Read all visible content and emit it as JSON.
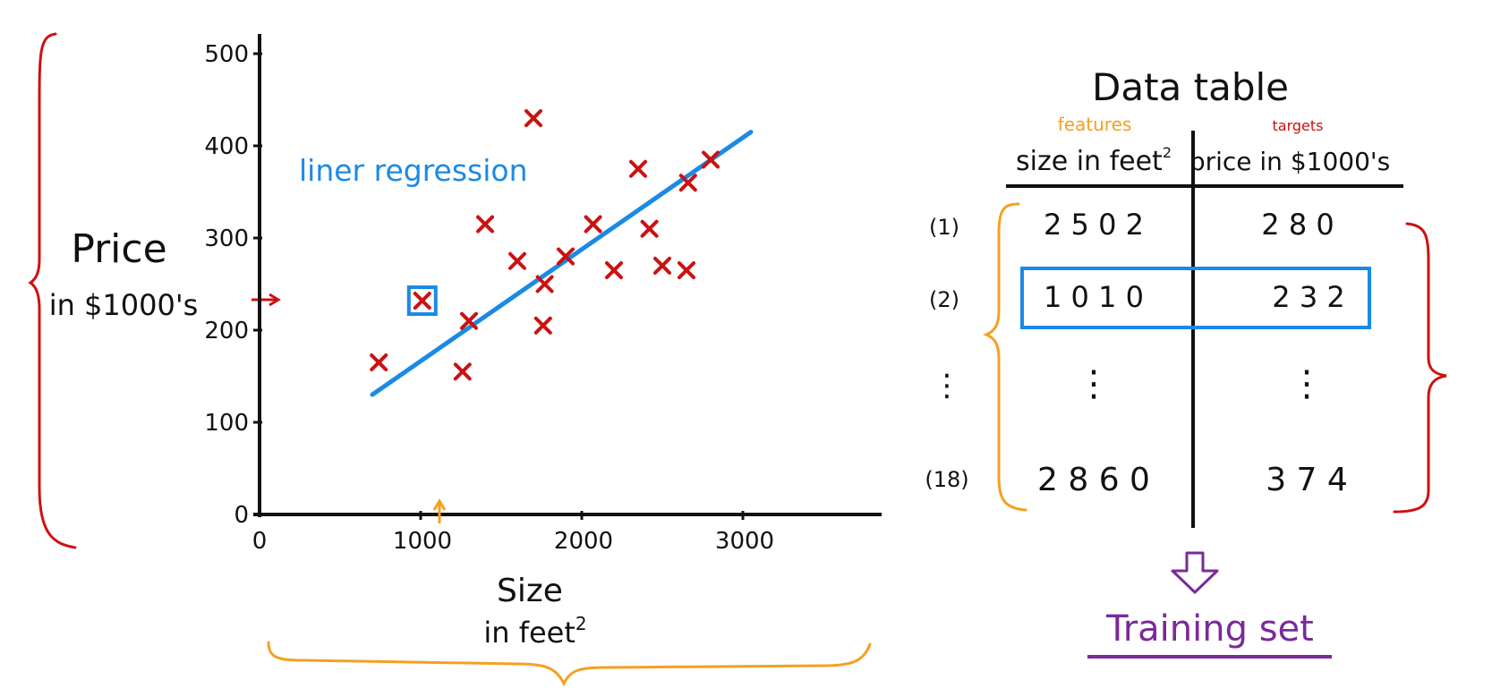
{
  "chart_data": {
    "type": "scatter",
    "ylabel_line1": "Price",
    "ylabel_line2": "in $1000's",
    "xlabel_line1": "Size",
    "xlabel_line2": "in feet",
    "xlabel_sup": "2",
    "xlim": [
      0,
      3500
    ],
    "ylim": [
      0,
      500
    ],
    "x_ticks": [
      {
        "value": 0,
        "label": "0"
      },
      {
        "value": 1000,
        "label": "1000"
      },
      {
        "value": 2000,
        "label": "2000"
      },
      {
        "value": 3000,
        "label": "3000"
      }
    ],
    "y_ticks": [
      {
        "value": 0,
        "label": "0"
      },
      {
        "value": 100,
        "label": "100"
      },
      {
        "value": 200,
        "label": "200"
      },
      {
        "value": 300,
        "label": "300"
      },
      {
        "value": 400,
        "label": "400"
      },
      {
        "value": 500,
        "label": "500"
      }
    ],
    "points": [
      {
        "x": 740,
        "y": 165
      },
      {
        "x": 1010,
        "y": 232
      },
      {
        "x": 1300,
        "y": 210
      },
      {
        "x": 1260,
        "y": 155
      },
      {
        "x": 1400,
        "y": 315
      },
      {
        "x": 1600,
        "y": 275
      },
      {
        "x": 1700,
        "y": 430
      },
      {
        "x": 1770,
        "y": 250
      },
      {
        "x": 1760,
        "y": 205
      },
      {
        "x": 1900,
        "y": 280
      },
      {
        "x": 2070,
        "y": 315
      },
      {
        "x": 2200,
        "y": 265
      },
      {
        "x": 2350,
        "y": 375
      },
      {
        "x": 2420,
        "y": 310
      },
      {
        "x": 2500,
        "y": 270
      },
      {
        "x": 2650,
        "y": 265
      },
      {
        "x": 2660,
        "y": 360
      },
      {
        "x": 2800,
        "y": 385
      }
    ],
    "highlight_point": {
      "x": 1010,
      "y": 232
    },
    "regression_label": "liner regression",
    "regression_line": {
      "x1": 700,
      "y1": 130,
      "x2": 3050,
      "y2": 415
    },
    "colors": {
      "points": "#cc1111",
      "regression": "#1a8ae6",
      "highlight": "#1a8ae6",
      "axes": "#111111",
      "brace_price": "#cc1111",
      "brace_size": "#f5a020",
      "marker": "#f5a020"
    }
  },
  "table": {
    "title": "Data table",
    "features_tag": "features",
    "targets_tag": "targets",
    "col1_header": "size in feet",
    "col1_sup": "2",
    "col2_header": "price in $1000's",
    "rows": [
      {
        "index": "(1)",
        "size": "2 5 0 2",
        "price": "2 8 0"
      },
      {
        "index": "(2)",
        "size": "1 0 1 0",
        "price": "2 3 2"
      },
      {
        "index": "⋮",
        "size": "⋮",
        "price": "⋮"
      },
      {
        "index": "(18)",
        "size": "2 8 6 0",
        "price": "3 7 4"
      }
    ],
    "colors": {
      "features": "#f5a020",
      "targets": "#cc1111",
      "row_highlight": "#1a8ae6",
      "brace_features": "#f5a020",
      "brace_targets": "#cc1111"
    }
  },
  "training": {
    "label": "Training set",
    "color": "#7a2a9a"
  }
}
